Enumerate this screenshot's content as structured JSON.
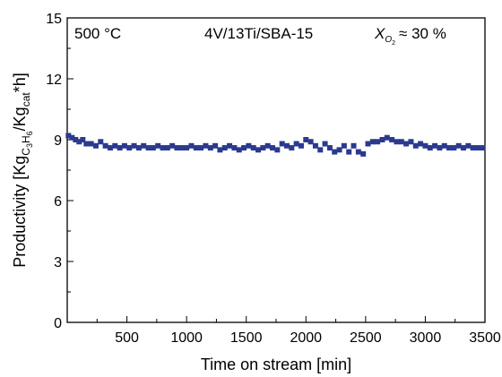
{
  "chart_data": {
    "type": "scatter",
    "title": "",
    "xlabel": "Time on stream [min]",
    "ylabel": {
      "prefix": "Productivity [Kg",
      "sub1": "C",
      "sub1a": "3",
      "sub1b": "H",
      "sub1c": "6",
      "mid": "/Kg",
      "sub2": "cat",
      "suffix": "*h]"
    },
    "xlim": [
      0,
      3500
    ],
    "ylim": [
      0,
      15
    ],
    "xticks": [
      500,
      1000,
      1500,
      2000,
      2500,
      3000,
      3500
    ],
    "yticks": [
      0,
      3,
      6,
      9,
      12,
      15
    ],
    "grid": false,
    "annotations": {
      "temperature": "500 °C",
      "catalyst": "4V/13Ti/SBA-15",
      "conversion": {
        "symbol": "X",
        "sub": "O",
        "subsub": "2",
        "text": "≈ 30 %"
      }
    },
    "marker_color": "#2b3a8f",
    "series": [
      {
        "x": [
          10,
          40,
          70,
          100,
          130,
          160,
          200,
          240,
          280,
          320,
          360,
          400,
          440,
          480,
          520,
          560,
          600,
          640,
          680,
          720,
          760,
          800,
          840,
          880,
          920,
          960,
          1000,
          1040,
          1080,
          1120,
          1160,
          1200,
          1240,
          1280,
          1320,
          1360,
          1400,
          1440,
          1480,
          1520,
          1560,
          1600,
          1640,
          1680,
          1720,
          1760,
          1800,
          1840,
          1880,
          1920,
          1960,
          2000,
          2040,
          2080,
          2120,
          2160,
          2200,
          2240,
          2280,
          2320,
          2360,
          2400,
          2440,
          2480,
          2520,
          2560,
          2600,
          2640,
          2680,
          2720,
          2760,
          2800,
          2840,
          2880,
          2920,
          2960,
          3000,
          3040,
          3080,
          3120,
          3160,
          3200,
          3240,
          3280,
          3320,
          3360,
          3400,
          3440,
          3480
        ],
        "y": [
          9.2,
          9.1,
          9.0,
          8.9,
          9.0,
          8.8,
          8.8,
          8.7,
          8.9,
          8.7,
          8.6,
          8.7,
          8.6,
          8.7,
          8.6,
          8.7,
          8.6,
          8.7,
          8.6,
          8.6,
          8.7,
          8.6,
          8.6,
          8.7,
          8.6,
          8.6,
          8.6,
          8.7,
          8.6,
          8.6,
          8.7,
          8.6,
          8.7,
          8.5,
          8.6,
          8.7,
          8.6,
          8.5,
          8.6,
          8.7,
          8.6,
          8.5,
          8.6,
          8.7,
          8.6,
          8.5,
          8.8,
          8.7,
          8.6,
          8.8,
          8.7,
          9.0,
          8.9,
          8.7,
          8.5,
          8.8,
          8.6,
          8.4,
          8.5,
          8.7,
          8.4,
          8.7,
          8.4,
          8.3,
          8.8,
          8.9,
          8.9,
          9.0,
          9.1,
          9.0,
          8.9,
          8.9,
          8.8,
          8.9,
          8.7,
          8.8,
          8.7,
          8.6,
          8.7,
          8.6,
          8.7,
          8.6,
          8.6,
          8.7,
          8.6,
          8.7,
          8.6,
          8.6,
          8.6
        ]
      }
    ]
  }
}
